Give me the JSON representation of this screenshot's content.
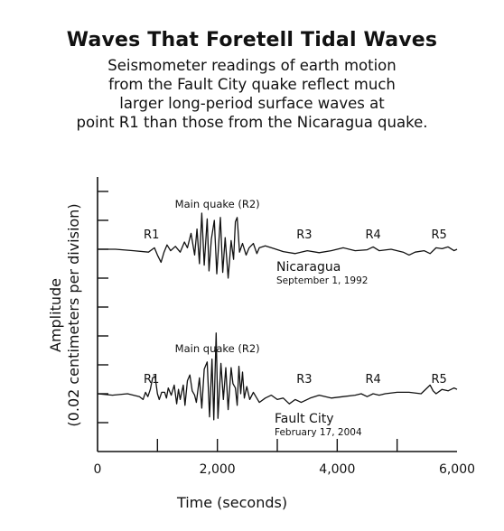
{
  "title": "Waves That Foretell Tidal Waves",
  "subtitle": [
    "Seismometer readings of earth motion",
    "from the Fault City quake reflect much",
    "larger long-period surface waves at",
    "point R1 than those from the Nicaragua quake."
  ],
  "chart_data": {
    "type": "line",
    "title": "Waves That Foretell Tidal Waves",
    "xlabel": "Time (seconds)",
    "ylabel": "Amplitude\n(0.02 centimeters per division)",
    "ylabel_lines": [
      "Amplitude",
      "(0.02 centimeters per division)"
    ],
    "xlim": [
      0,
      6000
    ],
    "x_ticks": [
      0,
      2000,
      4000,
      6000
    ],
    "x_tick_labels": [
      "0",
      "2,000",
      "4,000",
      "6,000"
    ],
    "y_divisions": 9,
    "series": [
      {
        "name": "Nicaragua",
        "date": "September 1, 1992",
        "baseline_division": 7.0,
        "markers": [
          {
            "label": "Main quake (R2)",
            "x": 2000
          },
          {
            "label": "R1",
            "x": 900
          },
          {
            "label": "R3",
            "x": 3450
          },
          {
            "label": "R4",
            "x": 4600
          },
          {
            "label": "R5",
            "x": 5700
          }
        ],
        "points": [
          [
            0,
            0
          ],
          [
            300,
            0
          ],
          [
            600,
            -0.05
          ],
          [
            850,
            -0.1
          ],
          [
            950,
            0.05
          ],
          [
            1000,
            -0.2
          ],
          [
            1060,
            -0.45
          ],
          [
            1110,
            -0.1
          ],
          [
            1160,
            0.15
          ],
          [
            1220,
            -0.05
          ],
          [
            1300,
            0.1
          ],
          [
            1380,
            -0.1
          ],
          [
            1450,
            0.25
          ],
          [
            1500,
            0.05
          ],
          [
            1560,
            0.55
          ],
          [
            1620,
            -0.2
          ],
          [
            1660,
            0.7
          ],
          [
            1700,
            -0.5
          ],
          [
            1740,
            1.25
          ],
          [
            1780,
            -0.55
          ],
          [
            1830,
            1.05
          ],
          [
            1860,
            -0.75
          ],
          [
            1900,
            0.35
          ],
          [
            1950,
            1.0
          ],
          [
            1990,
            -0.85
          ],
          [
            2050,
            1.1
          ],
          [
            2090,
            -0.8
          ],
          [
            2130,
            0.4
          ],
          [
            2180,
            -1.0
          ],
          [
            2230,
            0.3
          ],
          [
            2270,
            -0.35
          ],
          [
            2300,
            0.95
          ],
          [
            2330,
            1.1
          ],
          [
            2370,
            -0.1
          ],
          [
            2420,
            0.2
          ],
          [
            2480,
            -0.2
          ],
          [
            2530,
            0.05
          ],
          [
            2600,
            0.2
          ],
          [
            2660,
            -0.15
          ],
          [
            2700,
            0.05
          ],
          [
            2800,
            0.12
          ],
          [
            2950,
            0.02
          ],
          [
            3100,
            -0.08
          ],
          [
            3300,
            -0.15
          ],
          [
            3500,
            -0.05
          ],
          [
            3700,
            -0.12
          ],
          [
            3900,
            -0.05
          ],
          [
            4100,
            0.05
          ],
          [
            4300,
            -0.05
          ],
          [
            4500,
            -0.02
          ],
          [
            4600,
            0.08
          ],
          [
            4700,
            -0.05
          ],
          [
            4900,
            0.0
          ],
          [
            5100,
            -0.1
          ],
          [
            5200,
            -0.2
          ],
          [
            5300,
            -0.1
          ],
          [
            5450,
            -0.05
          ],
          [
            5550,
            -0.15
          ],
          [
            5650,
            0.05
          ],
          [
            5750,
            0.02
          ],
          [
            5850,
            0.08
          ],
          [
            5950,
            -0.05
          ],
          [
            6000,
            0.0
          ]
        ]
      },
      {
        "name": "Fault City",
        "date": "February 17, 2004",
        "baseline_division": 2.0,
        "markers": [
          {
            "label": "Main quake (R2)",
            "x": 2000
          },
          {
            "label": "R1",
            "x": 900
          },
          {
            "label": "R3",
            "x": 3450
          },
          {
            "label": "R4",
            "x": 4600
          },
          {
            "label": "R5",
            "x": 5700
          }
        ],
        "points": [
          [
            0,
            0
          ],
          [
            250,
            -0.05
          ],
          [
            500,
            0.0
          ],
          [
            700,
            -0.1
          ],
          [
            760,
            -0.2
          ],
          [
            800,
            0.05
          ],
          [
            840,
            -0.1
          ],
          [
            880,
            0.15
          ],
          [
            920,
            0.55
          ],
          [
            960,
            0.6
          ],
          [
            1000,
            0.0
          ],
          [
            1030,
            -0.2
          ],
          [
            1070,
            0.05
          ],
          [
            1120,
            0.05
          ],
          [
            1150,
            -0.15
          ],
          [
            1180,
            0.2
          ],
          [
            1230,
            -0.05
          ],
          [
            1280,
            0.3
          ],
          [
            1320,
            -0.35
          ],
          [
            1350,
            0.15
          ],
          [
            1380,
            -0.2
          ],
          [
            1430,
            0.3
          ],
          [
            1460,
            -0.4
          ],
          [
            1500,
            0.45
          ],
          [
            1540,
            0.65
          ],
          [
            1580,
            0.1
          ],
          [
            1620,
            -0.05
          ],
          [
            1650,
            -0.3
          ],
          [
            1700,
            0.55
          ],
          [
            1740,
            -0.5
          ],
          [
            1780,
            0.85
          ],
          [
            1830,
            1.1
          ],
          [
            1870,
            -0.8
          ],
          [
            1910,
            1.2
          ],
          [
            1940,
            -0.9
          ],
          [
            1980,
            2.1
          ],
          [
            2010,
            -0.85
          ],
          [
            2060,
            1.05
          ],
          [
            2100,
            -0.2
          ],
          [
            2140,
            0.9
          ],
          [
            2180,
            -0.55
          ],
          [
            2230,
            0.9
          ],
          [
            2260,
            0.35
          ],
          [
            2300,
            0.2
          ],
          [
            2330,
            -0.4
          ],
          [
            2360,
            0.95
          ],
          [
            2390,
            0.0
          ],
          [
            2420,
            0.75
          ],
          [
            2450,
            -0.15
          ],
          [
            2490,
            0.25
          ],
          [
            2540,
            -0.2
          ],
          [
            2600,
            0.05
          ],
          [
            2700,
            -0.3
          ],
          [
            2800,
            -0.15
          ],
          [
            2900,
            -0.05
          ],
          [
            3000,
            -0.2
          ],
          [
            3100,
            -0.15
          ],
          [
            3200,
            -0.35
          ],
          [
            3300,
            -0.2
          ],
          [
            3400,
            -0.3
          ],
          [
            3550,
            -0.15
          ],
          [
            3700,
            -0.05
          ],
          [
            3900,
            -0.15
          ],
          [
            4100,
            -0.1
          ],
          [
            4300,
            -0.05
          ],
          [
            4400,
            0.0
          ],
          [
            4500,
            -0.1
          ],
          [
            4600,
            0.0
          ],
          [
            4700,
            -0.05
          ],
          [
            4800,
            0.0
          ],
          [
            5000,
            0.05
          ],
          [
            5200,
            0.05
          ],
          [
            5400,
            0.0
          ],
          [
            5550,
            0.3
          ],
          [
            5600,
            0.1
          ],
          [
            5650,
            0.0
          ],
          [
            5750,
            0.15
          ],
          [
            5850,
            0.1
          ],
          [
            5950,
            0.2
          ],
          [
            6000,
            0.15
          ]
        ]
      }
    ]
  }
}
